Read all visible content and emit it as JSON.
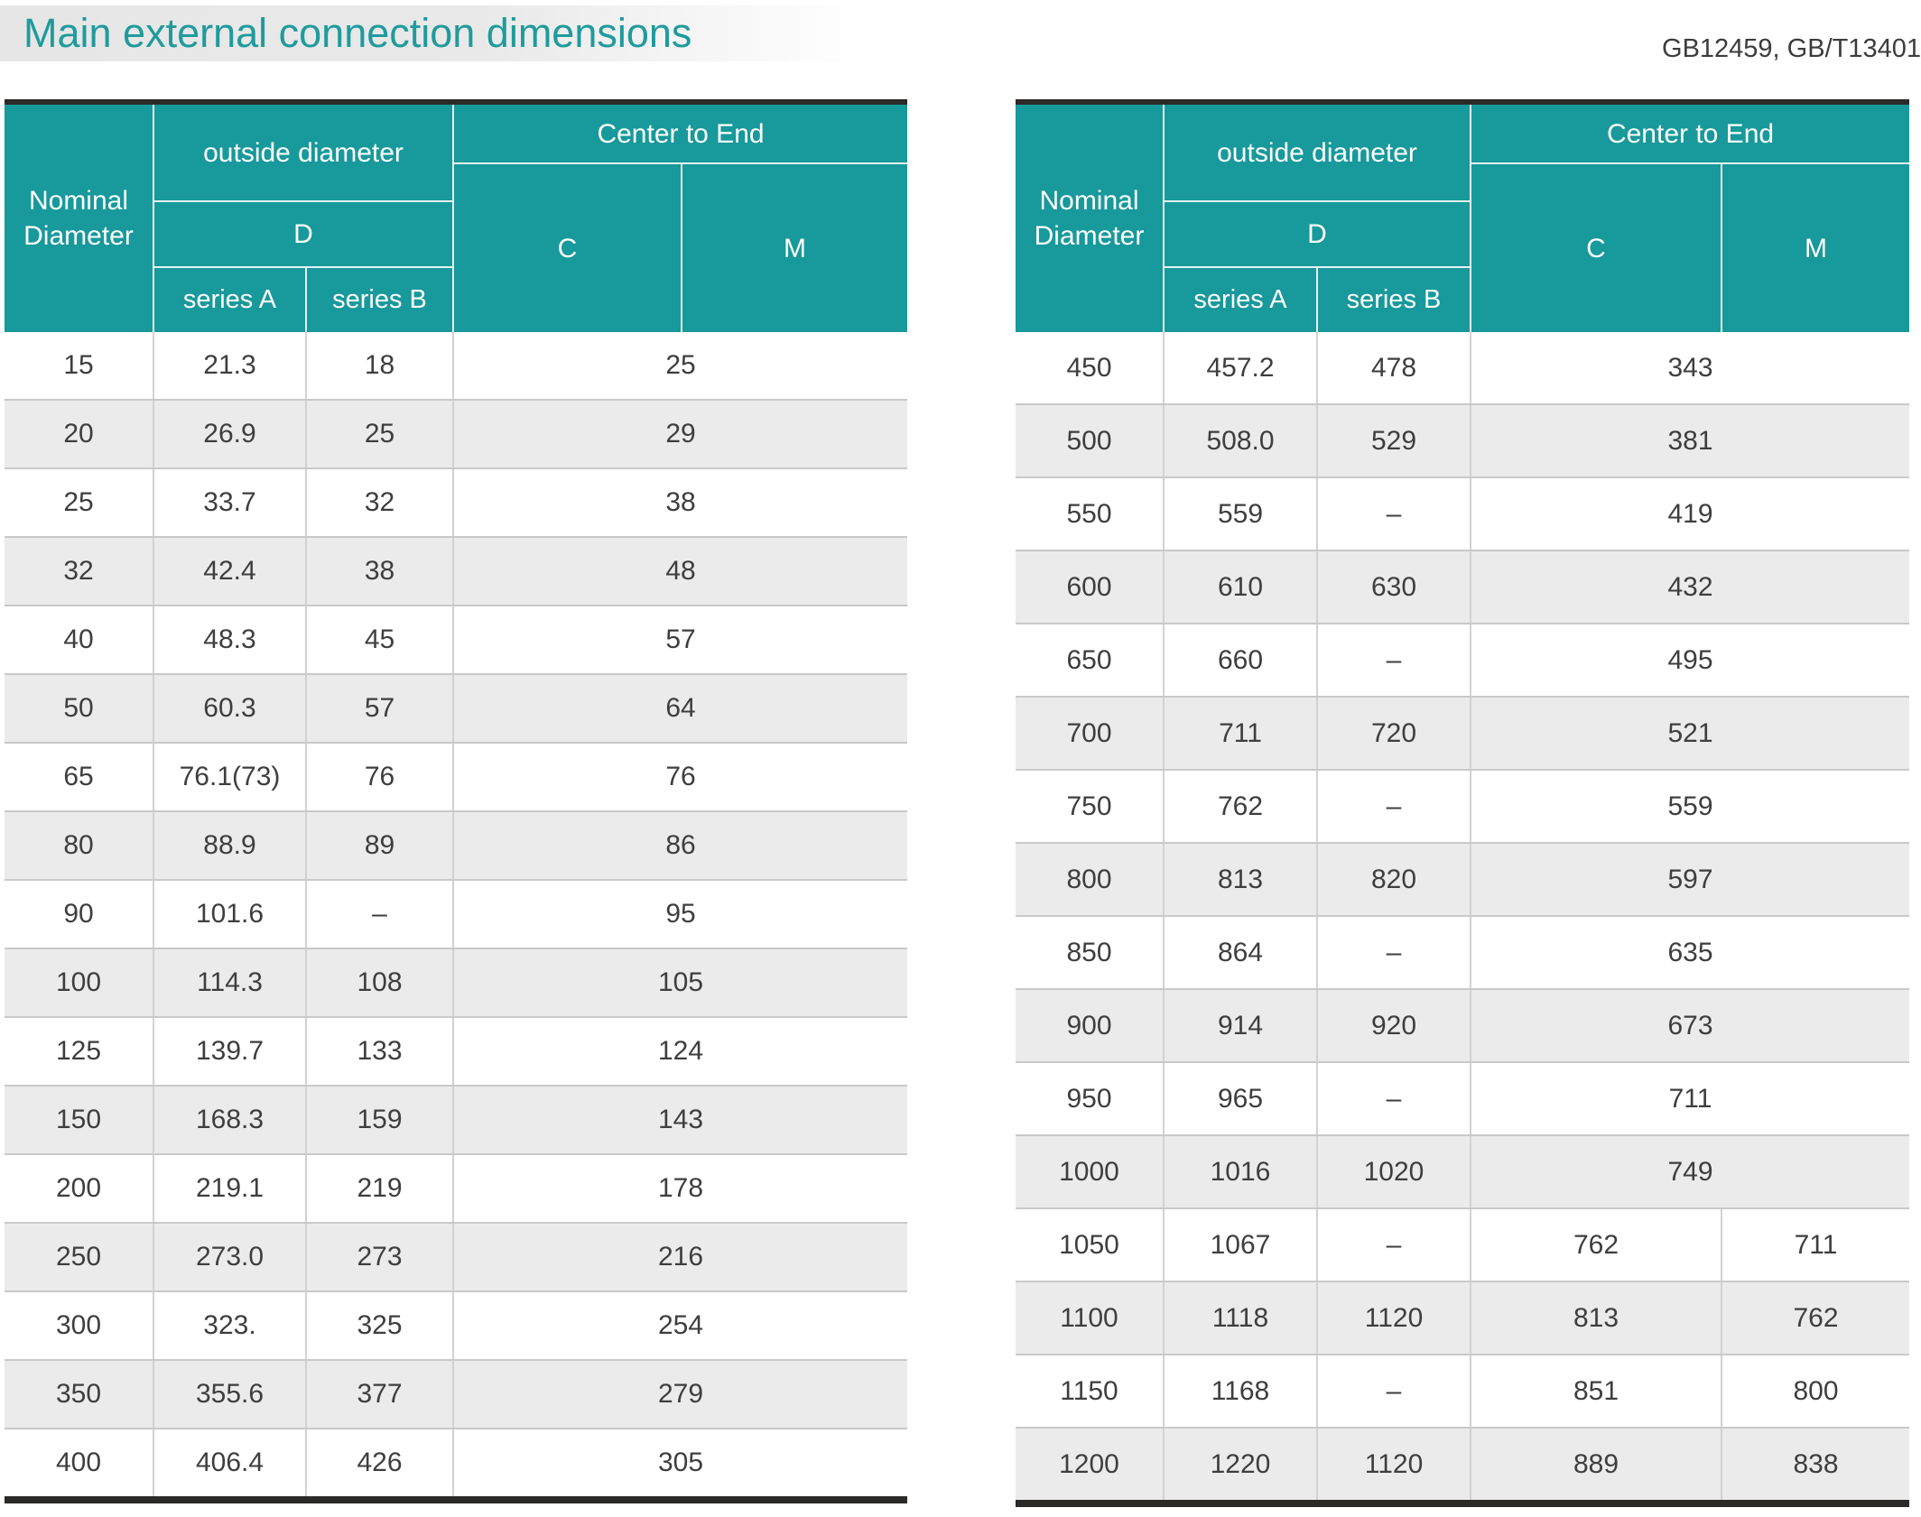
{
  "header": {
    "title": "Main external connection dimensions",
    "standards": "GB12459, GB/T13401"
  },
  "columns": {
    "nominal_diameter": "Nominal Diameter",
    "outside_diameter": "outside diameter",
    "d": "D",
    "series_a": "series A",
    "series_b": "series B",
    "center_to_end": "Center to End",
    "c": "C",
    "m": "M"
  },
  "colors": {
    "header_teal": "#18999b",
    "title_teal": "#1f9b9c",
    "row_alt_gray": "#ebebeb",
    "border_dark": "#2c2a28",
    "text_dark": "#3e3e3e"
  },
  "left_table": {
    "rows": [
      {
        "nd": "15",
        "a": "21.3",
        "b": "18",
        "cm": "25"
      },
      {
        "nd": "20",
        "a": "26.9",
        "b": "25",
        "cm": "29"
      },
      {
        "nd": "25",
        "a": "33.7",
        "b": "32",
        "cm": "38"
      },
      {
        "nd": "32",
        "a": "42.4",
        "b": "38",
        "cm": "48"
      },
      {
        "nd": "40",
        "a": "48.3",
        "b": "45",
        "cm": "57"
      },
      {
        "nd": "50",
        "a": "60.3",
        "b": "57",
        "cm": "64"
      },
      {
        "nd": "65",
        "a": "76.1(73)",
        "b": "76",
        "cm": "76"
      },
      {
        "nd": "80",
        "a": "88.9",
        "b": "89",
        "cm": "86"
      },
      {
        "nd": "90",
        "a": "101.6",
        "b": "–",
        "cm": "95"
      },
      {
        "nd": "100",
        "a": "114.3",
        "b": "108",
        "cm": "105"
      },
      {
        "nd": "125",
        "a": "139.7",
        "b": "133",
        "cm": "124"
      },
      {
        "nd": "150",
        "a": "168.3",
        "b": "159",
        "cm": "143"
      },
      {
        "nd": "200",
        "a": "219.1",
        "b": "219",
        "cm": "178"
      },
      {
        "nd": "250",
        "a": "273.0",
        "b": "273",
        "cm": "216"
      },
      {
        "nd": "300",
        "a": "323.",
        "b": "325",
        "cm": "254"
      },
      {
        "nd": "350",
        "a": "355.6",
        "b": "377",
        "cm": "279"
      },
      {
        "nd": "400",
        "a": "406.4",
        "b": "426",
        "cm": "305"
      }
    ]
  },
  "right_table": {
    "rows": [
      {
        "nd": "450",
        "a": "457.2",
        "b": "478",
        "cm": "343"
      },
      {
        "nd": "500",
        "a": "508.0",
        "b": "529",
        "cm": "381"
      },
      {
        "nd": "550",
        "a": "559",
        "b": "–",
        "cm": "419"
      },
      {
        "nd": "600",
        "a": "610",
        "b": "630",
        "cm": "432"
      },
      {
        "nd": "650",
        "a": "660",
        "b": "–",
        "cm": "495"
      },
      {
        "nd": "700",
        "a": "711",
        "b": "720",
        "cm": "521"
      },
      {
        "nd": "750",
        "a": "762",
        "b": "–",
        "cm": "559"
      },
      {
        "nd": "800",
        "a": "813",
        "b": "820",
        "cm": "597"
      },
      {
        "nd": "850",
        "a": "864",
        "b": "–",
        "cm": "635"
      },
      {
        "nd": "900",
        "a": "914",
        "b": "920",
        "cm": "673"
      },
      {
        "nd": "950",
        "a": "965",
        "b": "–",
        "cm": "711"
      },
      {
        "nd": "1000",
        "a": "1016",
        "b": "1020",
        "cm": "749"
      },
      {
        "nd": "1050",
        "a": "1067",
        "b": "–",
        "c": "762",
        "m": "711"
      },
      {
        "nd": "1100",
        "a": "1118",
        "b": "1120",
        "c": "813",
        "m": "762"
      },
      {
        "nd": "1150",
        "a": "1168",
        "b": "–",
        "c": "851",
        "m": "800"
      },
      {
        "nd": "1200",
        "a": "1220",
        "b": "1120",
        "c": "889",
        "m": "838"
      }
    ]
  }
}
